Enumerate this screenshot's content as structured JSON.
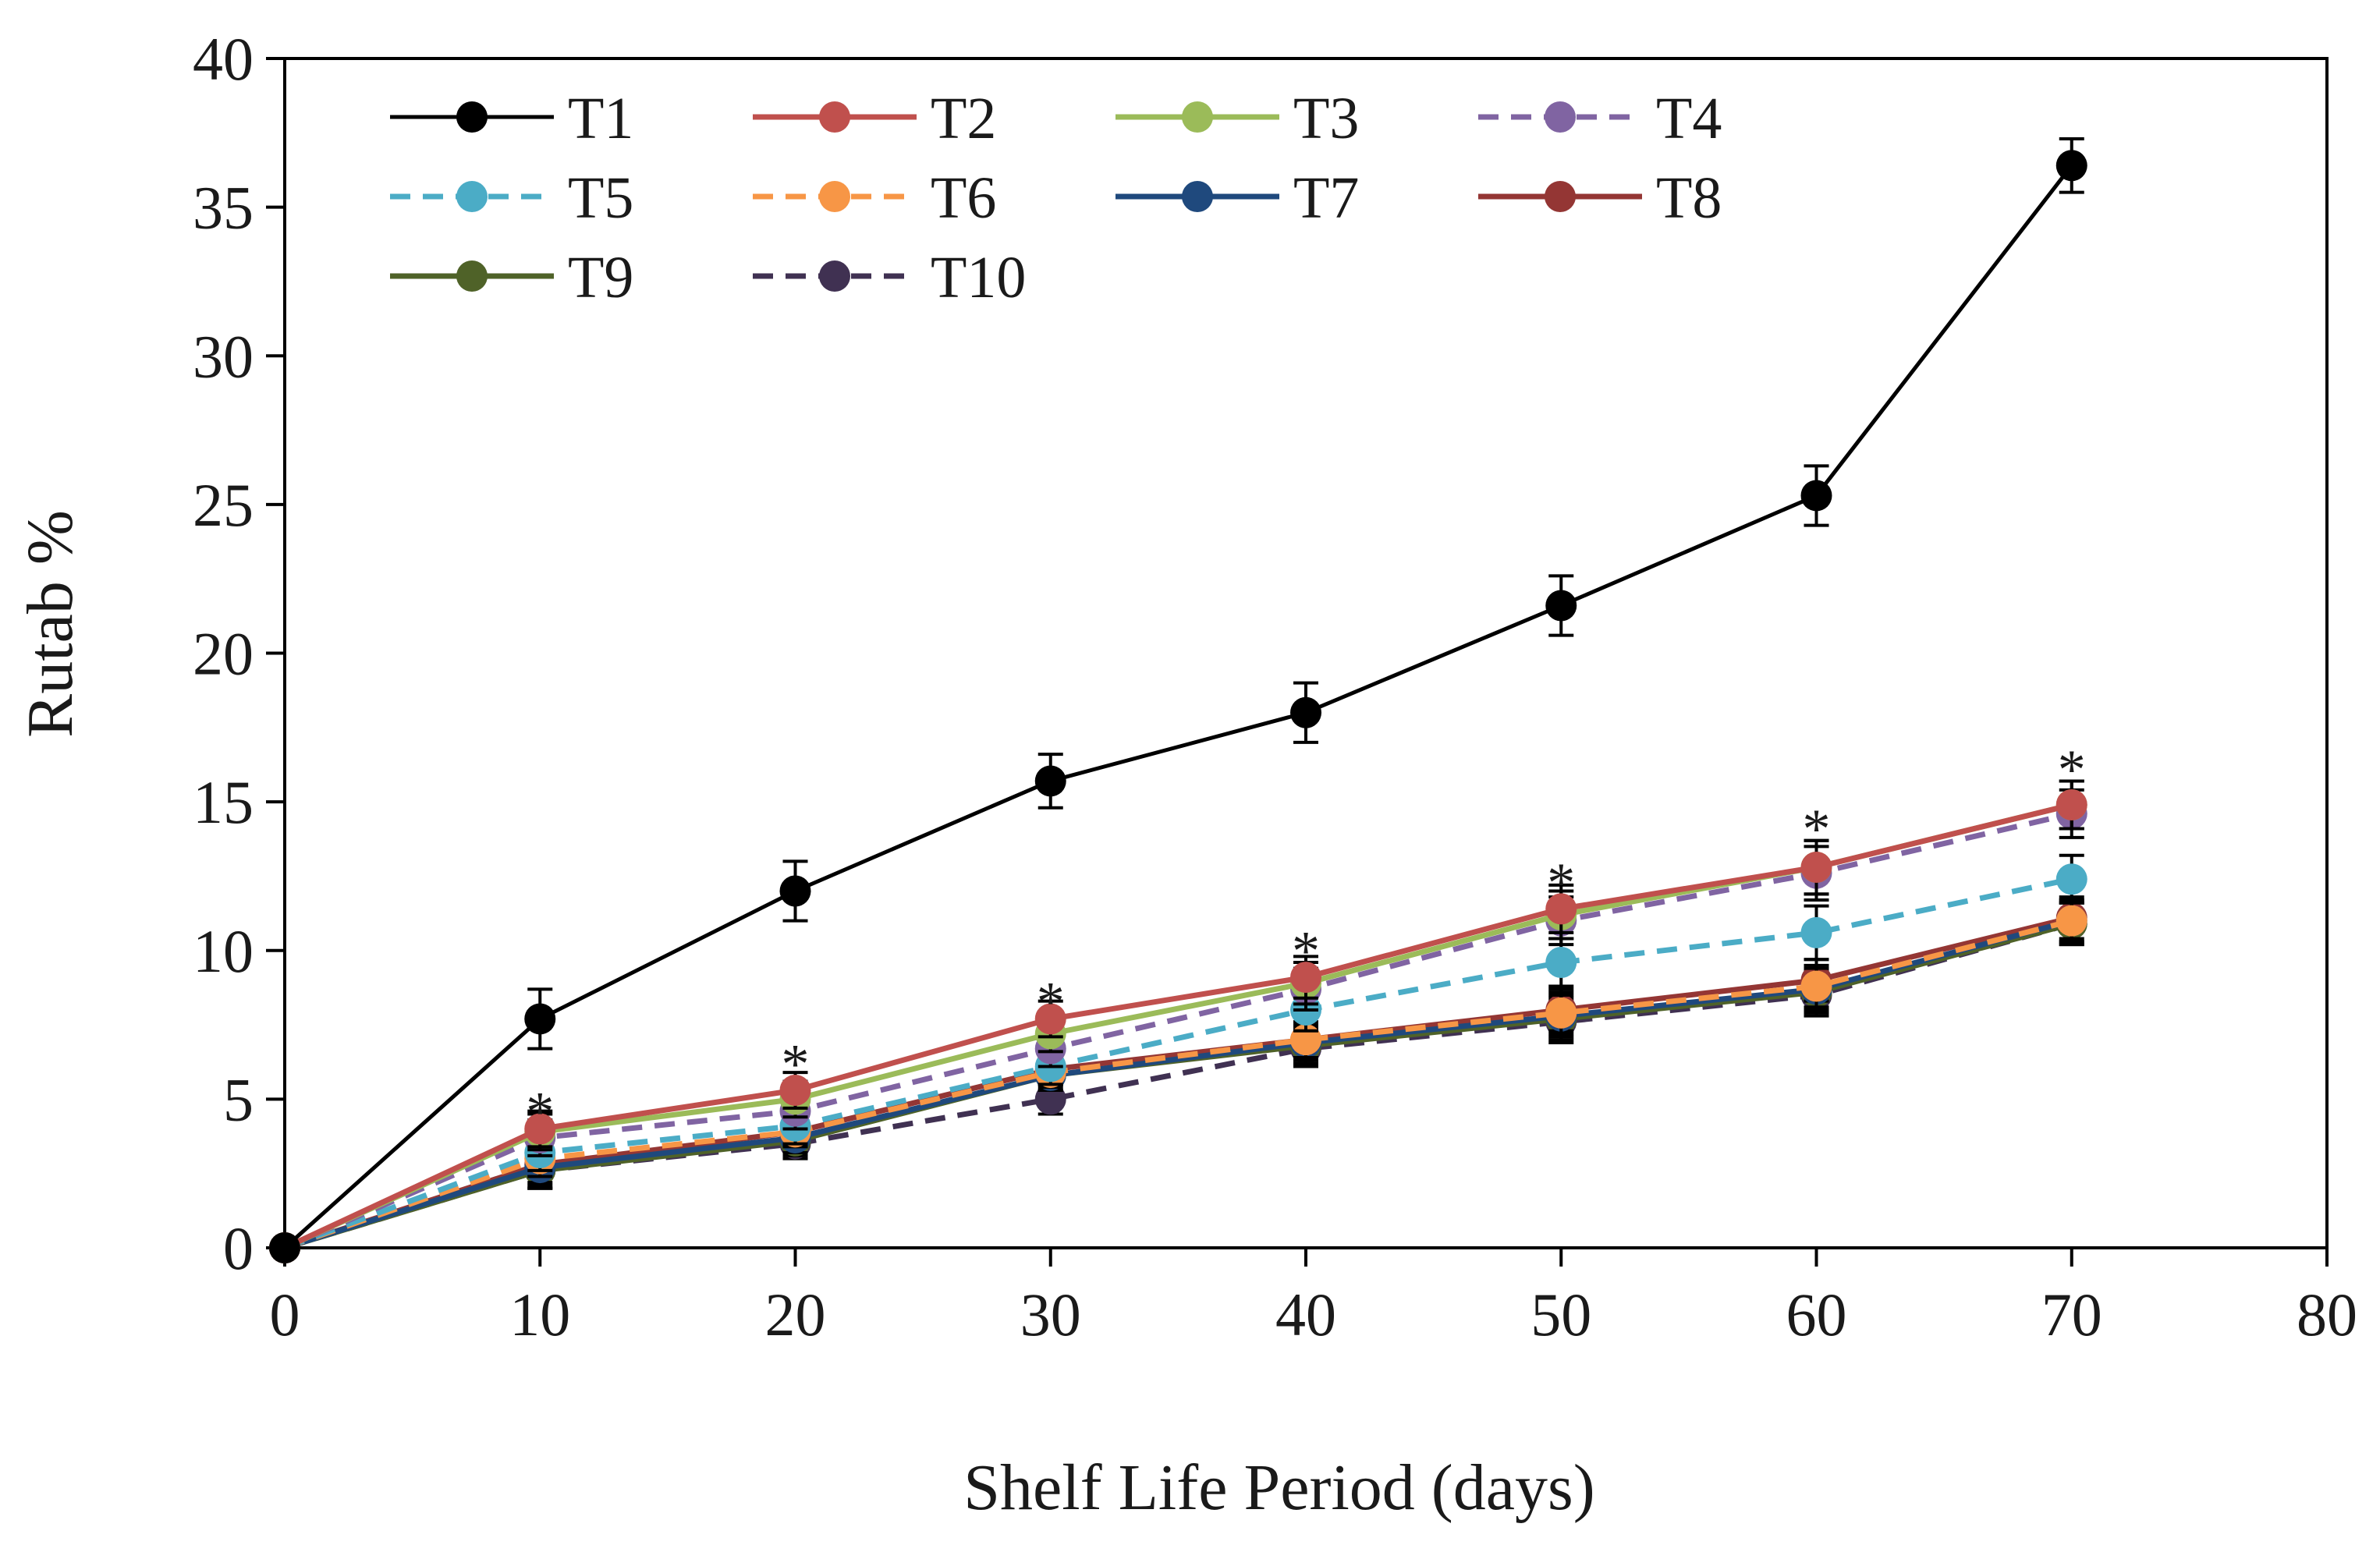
{
  "chart_data": {
    "type": "line",
    "title": "",
    "xlabel": "Shelf Life Period (days)",
    "ylabel": "Rutab %",
    "xlim": [
      0,
      80
    ],
    "ylim": [
      0,
      40
    ],
    "xticks": [
      "0",
      "10",
      "20",
      "30",
      "40",
      "50",
      "60",
      "70",
      "80"
    ],
    "yticks": [
      "0",
      "5",
      "10",
      "15",
      "20",
      "25",
      "30",
      "35",
      "40"
    ],
    "grid": false,
    "legend_position": "top-left",
    "x": [
      0,
      10,
      20,
      30,
      40,
      50,
      60,
      70
    ],
    "series": [
      {
        "name": "T1",
        "color": "#000000",
        "dashed": false,
        "values": [
          0,
          7.7,
          12.0,
          15.7,
          18.0,
          21.6,
          25.3,
          36.4
        ],
        "errors": [
          0,
          1.0,
          1.0,
          0.9,
          1.0,
          1.0,
          1.0,
          0.9
        ]
      },
      {
        "name": "T2",
        "color": "#c0504d",
        "dashed": false,
        "values": [
          0,
          4.0,
          5.3,
          7.7,
          9.1,
          11.4,
          12.8,
          14.9
        ],
        "errors": [
          0,
          0.6,
          0.6,
          0.6,
          0.7,
          0.8,
          0.9,
          0.8
        ]
      },
      {
        "name": "T3",
        "color": "#9bbb59",
        "dashed": false,
        "values": [
          0,
          3.9,
          5.0,
          7.2,
          8.9,
          11.2,
          12.8,
          14.9
        ],
        "errors": [
          0,
          0.6,
          0.6,
          0.6,
          0.7,
          0.8,
          0.9,
          0.8
        ]
      },
      {
        "name": "T4",
        "color": "#8064a2",
        "dashed": true,
        "values": [
          0,
          3.7,
          4.6,
          6.7,
          8.7,
          11.0,
          12.6,
          14.6
        ],
        "errors": [
          0,
          0.6,
          0.6,
          0.6,
          0.7,
          0.8,
          0.9,
          0.8
        ]
      },
      {
        "name": "T5",
        "color": "#4bacc6",
        "dashed": true,
        "values": [
          0,
          3.2,
          4.1,
          6.1,
          8.0,
          9.6,
          10.6,
          12.4
        ],
        "errors": [
          0,
          0.6,
          0.6,
          0.6,
          0.7,
          0.8,
          0.9,
          0.8
        ]
      },
      {
        "name": "T6",
        "color": "#f79646",
        "dashed": true,
        "values": [
          0,
          3.0,
          3.9,
          5.9,
          7.0,
          7.9,
          8.8,
          11.0
        ],
        "errors": [
          0,
          0.6,
          0.5,
          0.5,
          0.6,
          0.7,
          0.7,
          0.7
        ]
      },
      {
        "name": "T7",
        "color": "#1f497d",
        "dashed": false,
        "values": [
          0,
          2.7,
          3.7,
          5.8,
          6.9,
          7.8,
          8.7,
          11.0
        ],
        "errors": [
          0,
          0.6,
          0.5,
          0.5,
          0.6,
          0.7,
          0.7,
          0.7
        ]
      },
      {
        "name": "T8",
        "color": "#943634",
        "dashed": false,
        "values": [
          0,
          2.8,
          3.9,
          6.0,
          7.0,
          8.0,
          9.0,
          11.1
        ],
        "errors": [
          0,
          0.6,
          0.5,
          0.5,
          0.6,
          0.7,
          0.7,
          0.7
        ]
      },
      {
        "name": "T9",
        "color": "#4f6228",
        "dashed": false,
        "values": [
          0,
          2.6,
          3.6,
          5.8,
          6.8,
          7.7,
          8.6,
          10.9
        ],
        "errors": [
          0,
          0.6,
          0.5,
          0.5,
          0.6,
          0.7,
          0.7,
          0.7
        ]
      },
      {
        "name": "T10",
        "color": "#403152",
        "dashed": true,
        "values": [
          0,
          2.6,
          3.5,
          5.0,
          6.7,
          7.6,
          8.5,
          10.9
        ],
        "errors": [
          0,
          0.6,
          0.5,
          0.5,
          0.6,
          0.7,
          0.7,
          0.7
        ]
      }
    ],
    "annotations": [
      {
        "text": "*",
        "x": 10,
        "y": 5.0
      },
      {
        "text": "*",
        "x": 20,
        "y": 6.6
      },
      {
        "text": "*",
        "x": 30,
        "y": 8.7
      },
      {
        "text": "*",
        "x": 40,
        "y": 10.4
      },
      {
        "text": "*",
        "x": 50,
        "y": 12.7
      },
      {
        "text": "*",
        "x": 60,
        "y": 14.5
      },
      {
        "text": "*",
        "x": 70,
        "y": 16.5
      }
    ]
  }
}
